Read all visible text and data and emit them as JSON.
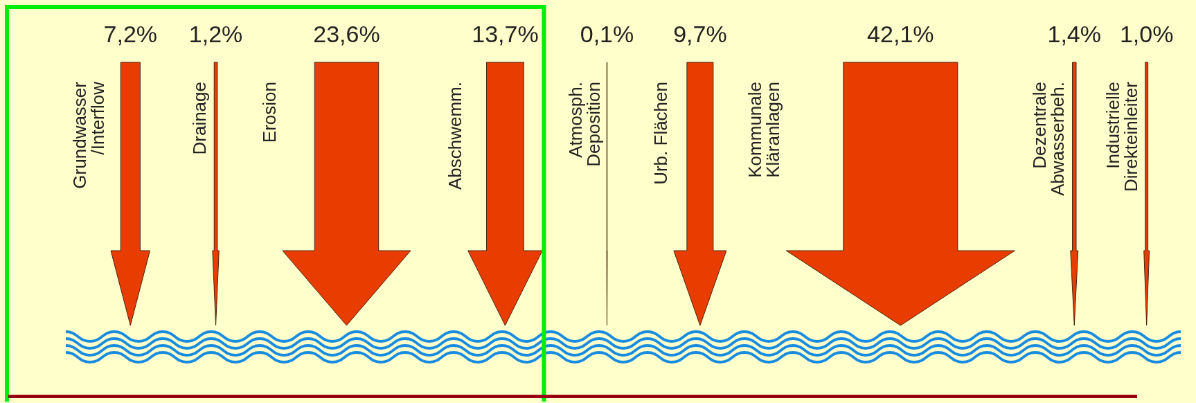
{
  "chart_data": {
    "type": "other",
    "categories": [
      "Grundwasser\n/Interflow",
      "Drainage",
      "Erosion",
      "Abschwemm.",
      "Atmosph.\nDeposition",
      "Urb. Flächen",
      "Kommunale\nKläranlagen",
      "Dezentrale\nAbwasserbeh.",
      "Industrielle\nDirekteinleiter"
    ],
    "values": [
      7.2,
      1.2,
      23.6,
      13.7,
      0.1,
      9.7,
      42.1,
      1.4,
      1.0
    ],
    "value_labels": [
      "7,2%",
      "1,2%",
      "23,6%",
      "13,7%",
      "0,1%",
      "9,7%",
      "42,1%",
      "1,4%",
      "1,0%"
    ],
    "color": "#e83c00"
  }
}
